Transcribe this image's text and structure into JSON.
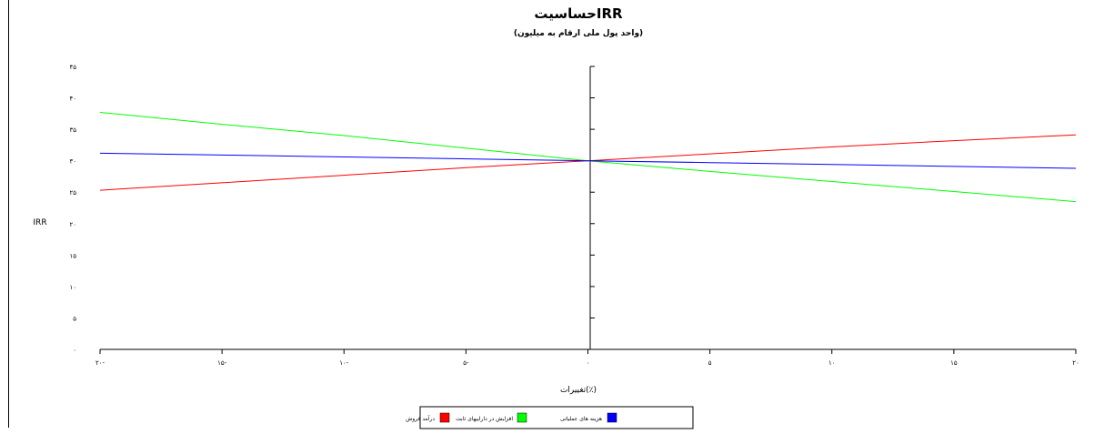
{
  "chart_data": {
    "type": "line",
    "title": "حساسیتIRR",
    "subtitle": "(واحد پول ملی ارقام به میلیون)",
    "xlabel": "تغییرات(٪)",
    "ylabel": "IRR",
    "x": [
      -20,
      -15,
      -10,
      -5,
      0,
      5,
      10,
      15,
      20
    ],
    "x_tick_labels": [
      "۲۰-",
      "۱۵-",
      "۱۰-",
      "۵-",
      "۰",
      "۵",
      "۱۰",
      "۱۵",
      "۲۰"
    ],
    "y_ticks": [
      0,
      5,
      10,
      15,
      20,
      25,
      30,
      35,
      40,
      45
    ],
    "y_tick_labels": [
      "۰",
      "۵",
      "۱۰",
      "۱۵",
      "۲۰",
      "۲۵",
      "۳۰",
      "۳۵",
      "۴۰",
      "۴۵"
    ],
    "xlim": [
      -20,
      20
    ],
    "ylim": [
      0,
      45
    ],
    "grid": false,
    "legend_position": "bottom",
    "series": [
      {
        "name": "درآمد فروش",
        "color": "#ff0000",
        "values": [
          25.3,
          26.5,
          27.7,
          28.9,
          30.0,
          31.1,
          32.2,
          33.2,
          34.1
        ]
      },
      {
        "name": "افزایش در داراییهای ثابت",
        "color": "#00ff00",
        "values": [
          37.7,
          35.8,
          34.0,
          32.0,
          30.0,
          28.3,
          26.7,
          25.1,
          23.5
        ]
      },
      {
        "name": "هزینه های عملیاتی",
        "color": "#0000ff",
        "values": [
          31.2,
          30.9,
          30.6,
          30.3,
          30.0,
          29.7,
          29.4,
          29.1,
          28.8
        ]
      }
    ]
  }
}
